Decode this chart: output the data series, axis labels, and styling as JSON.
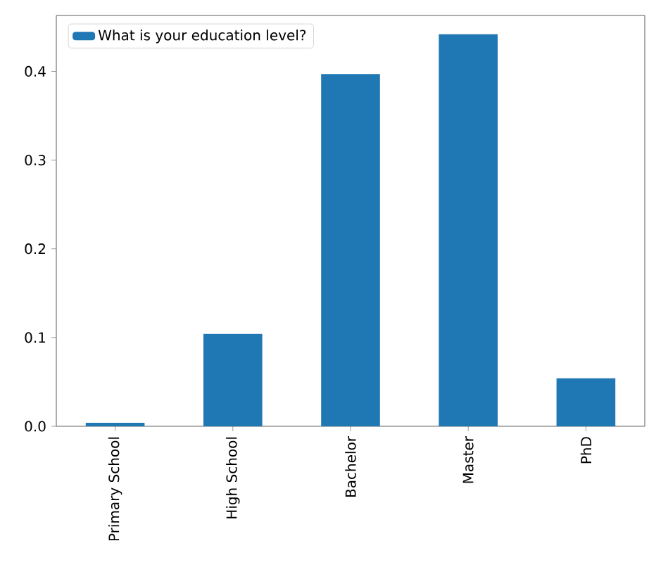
{
  "chart_data": {
    "type": "bar",
    "categories": [
      "Primary School",
      "High School",
      "Bachelor",
      "Master",
      "PhD"
    ],
    "series": [
      {
        "name": "What is your education level?",
        "color": "#1f77b4",
        "values": [
          0.004,
          0.104,
          0.397,
          0.442,
          0.054
        ]
      }
    ],
    "ylim": [
      0,
      0.463
    ],
    "yticks": [
      {
        "value": 0,
        "label": "0.0"
      },
      0.1,
      0.2,
      0.3,
      0.4
    ],
    "legend": "top left",
    "grid": false
  }
}
